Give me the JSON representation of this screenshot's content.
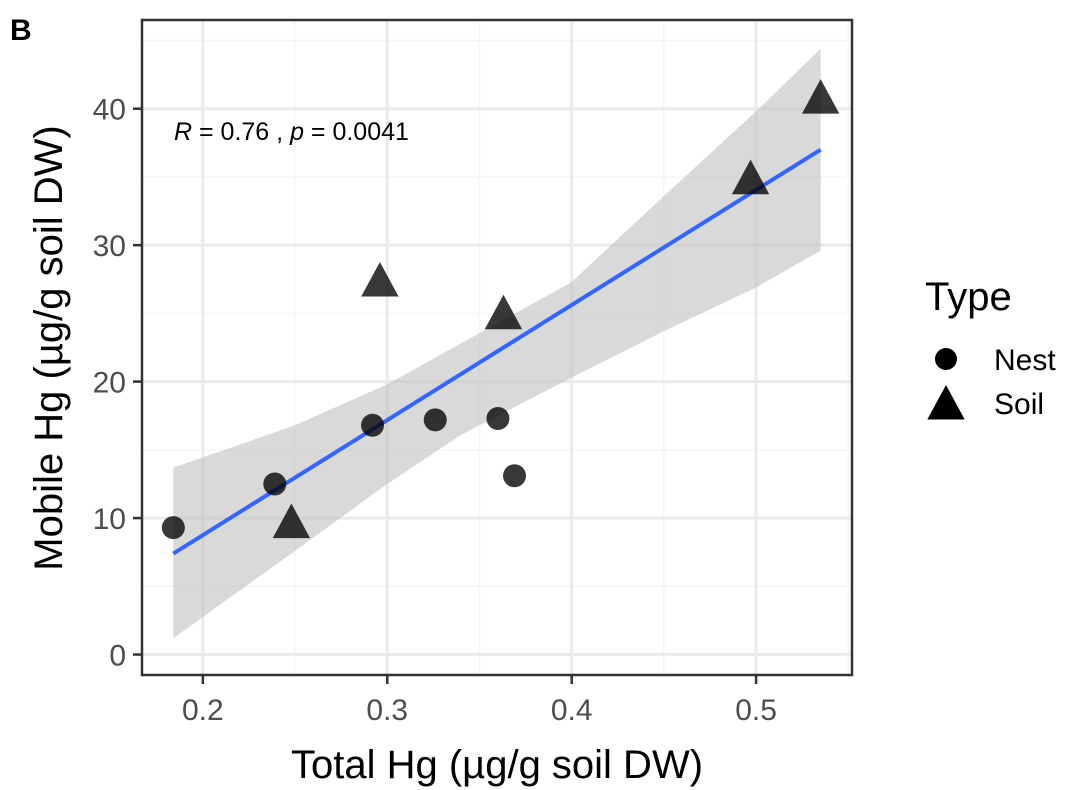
{
  "panel_tag": "B",
  "colors": {
    "point": "#000000",
    "fit_line": "#3366FF",
    "ci_band": "#bfbfbf",
    "grid_major": "#ebebeb",
    "grid_minor": "#f5f5f5",
    "panel_border": "#333333"
  },
  "chart_data": {
    "type": "scatter",
    "xlabel": "Total Hg (µg/g soil DW)",
    "ylabel": "Mobile Hg (µg/g soil DW)",
    "xlim": [
      0.167,
      0.552
    ],
    "ylim": [
      -1.5,
      46.5
    ],
    "xticks": [
      0.2,
      0.3,
      0.4,
      0.5
    ],
    "xtick_labels": [
      "0.2",
      "0.3",
      "0.4",
      "0.5"
    ],
    "yticks": [
      0,
      10,
      20,
      30,
      40
    ],
    "ytick_labels": [
      "0",
      "10",
      "20",
      "30",
      "40"
    ],
    "grid": true,
    "legend": {
      "title": "Type",
      "placement": "right",
      "entries": [
        {
          "label": "Nest",
          "shape": "circle"
        },
        {
          "label": "Soil",
          "shape": "triangle"
        }
      ]
    },
    "series": [
      {
        "name": "Nest",
        "shape": "circle",
        "points": [
          {
            "x": 0.184,
            "y": 9.3
          },
          {
            "x": 0.239,
            "y": 12.5
          },
          {
            "x": 0.292,
            "y": 16.8
          },
          {
            "x": 0.326,
            "y": 17.2
          },
          {
            "x": 0.36,
            "y": 17.3
          },
          {
            "x": 0.369,
            "y": 13.1
          }
        ]
      },
      {
        "name": "Soil",
        "shape": "triangle",
        "points": [
          {
            "x": 0.248,
            "y": 9.6
          },
          {
            "x": 0.296,
            "y": 27.3
          },
          {
            "x": 0.363,
            "y": 24.9
          },
          {
            "x": 0.497,
            "y": 34.8
          },
          {
            "x": 0.535,
            "y": 40.7
          }
        ]
      }
    ],
    "fit": {
      "line": [
        {
          "x": 0.184,
          "y": 7.4
        },
        {
          "x": 0.535,
          "y": 37.0
        }
      ],
      "ci_upper": [
        {
          "x": 0.184,
          "y": 13.7
        },
        {
          "x": 0.25,
          "y": 16.8
        },
        {
          "x": 0.3,
          "y": 19.8
        },
        {
          "x": 0.34,
          "y": 22.8
        },
        {
          "x": 0.4,
          "y": 27.3
        },
        {
          "x": 0.45,
          "y": 33.6
        },
        {
          "x": 0.5,
          "y": 39.8
        },
        {
          "x": 0.535,
          "y": 44.4
        }
      ],
      "ci_lower": [
        {
          "x": 0.184,
          "y": 1.2
        },
        {
          "x": 0.25,
          "y": 7.6
        },
        {
          "x": 0.3,
          "y": 12.5
        },
        {
          "x": 0.34,
          "y": 16.1
        },
        {
          "x": 0.4,
          "y": 20.3
        },
        {
          "x": 0.45,
          "y": 23.7
        },
        {
          "x": 0.5,
          "y": 26.9
        },
        {
          "x": 0.535,
          "y": 29.6
        }
      ]
    },
    "annotation": {
      "r_symbol": "R",
      "r_value": " = 0.76 , ",
      "p_symbol": "p",
      "p_value": " = 0.0041"
    }
  }
}
